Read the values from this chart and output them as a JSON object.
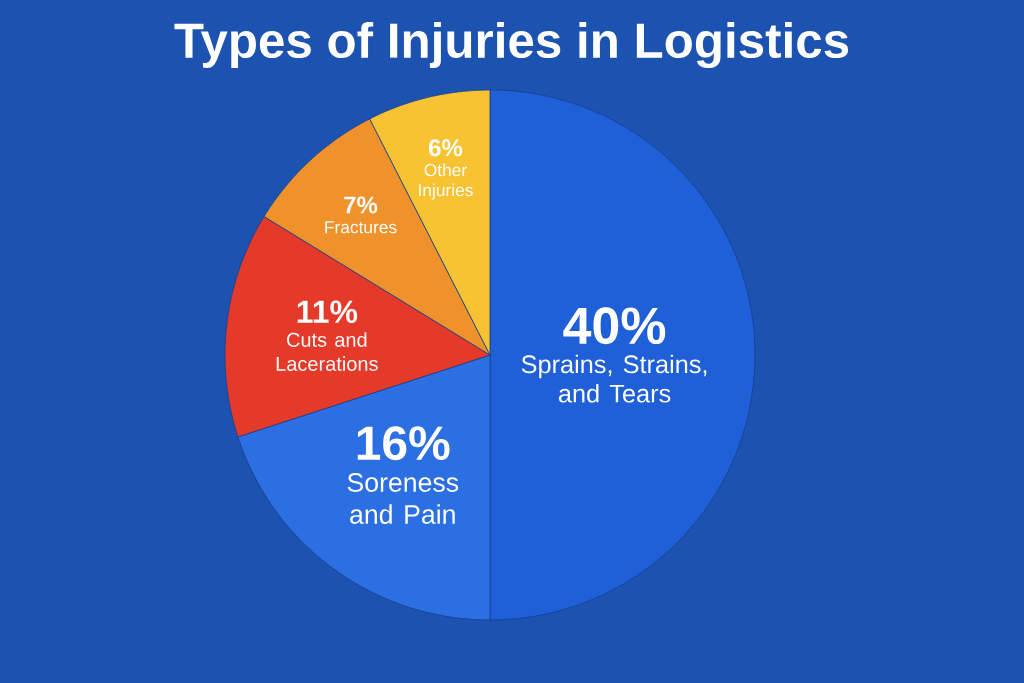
{
  "chart_data": {
    "type": "pie",
    "title": "Types of Injuries in Logistics",
    "categories": [
      "Sprains, Strains, and Tears",
      "Soreness and Pain",
      "Cuts and Lacerations",
      "Fractures",
      "Other Injuries"
    ],
    "values": [
      40,
      16,
      11,
      7,
      6
    ],
    "colors": [
      "#1f5fd8",
      "#2c6fe3",
      "#e5392a",
      "#f0922b",
      "#f7c332"
    ],
    "value_labels": [
      "40%",
      "16%",
      "11%",
      "7%",
      "6%"
    ]
  }
}
